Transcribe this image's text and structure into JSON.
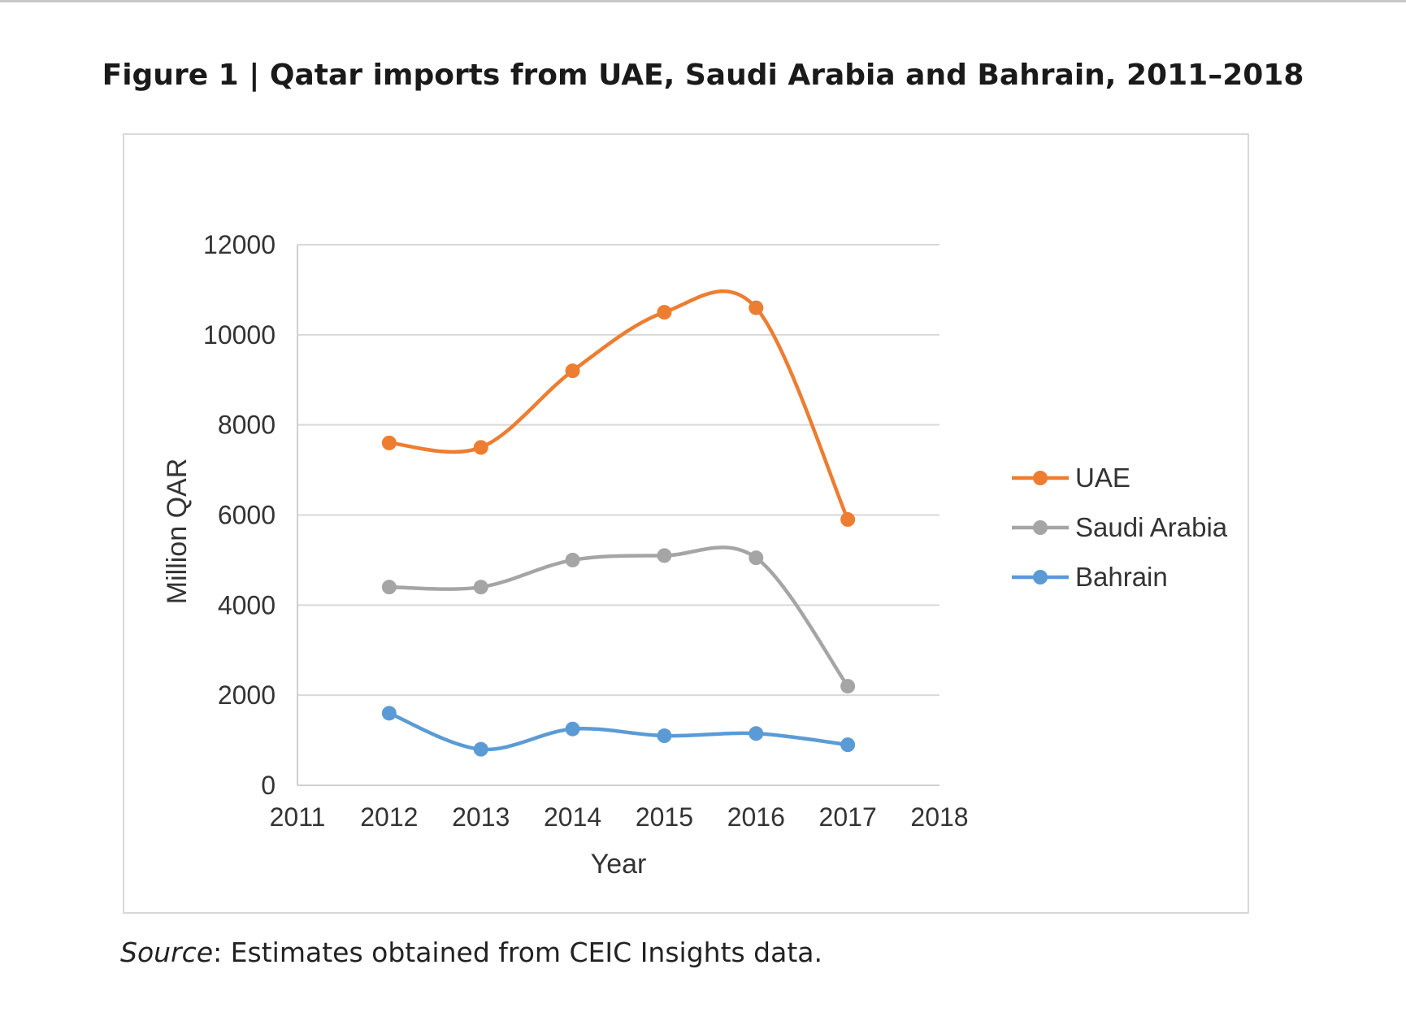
{
  "figure": {
    "title": "Figure 1 | Qatar imports from UAE, Saudi Arabia and Bahrain, 2011–2018",
    "source_label": "Source",
    "source_text": ": Estimates obtained from CEIC Insights data."
  },
  "chart_data": {
    "type": "line",
    "smooth": true,
    "xlabel": "Year",
    "ylabel": "Million QAR",
    "xlim": [
      2011,
      2018
    ],
    "ylim": [
      0,
      12000
    ],
    "xticks": [
      2011,
      2012,
      2013,
      2014,
      2015,
      2016,
      2017,
      2018
    ],
    "yticks": [
      0,
      2000,
      4000,
      6000,
      8000,
      10000,
      12000
    ],
    "grid": "horizontal",
    "legend_position": "right",
    "x": [
      2012,
      2013,
      2014,
      2015,
      2016,
      2017
    ],
    "series": [
      {
        "name": "UAE",
        "color": "#ed7d31",
        "values": [
          7600,
          7500,
          9200,
          10500,
          10600,
          5900
        ]
      },
      {
        "name": "Saudi Arabia",
        "color": "#a5a5a5",
        "values": [
          4400,
          4400,
          5000,
          5100,
          5050,
          2200
        ]
      },
      {
        "name": "Bahrain",
        "color": "#5b9bd5",
        "values": [
          1600,
          800,
          1250,
          1100,
          1150,
          900
        ]
      }
    ]
  }
}
